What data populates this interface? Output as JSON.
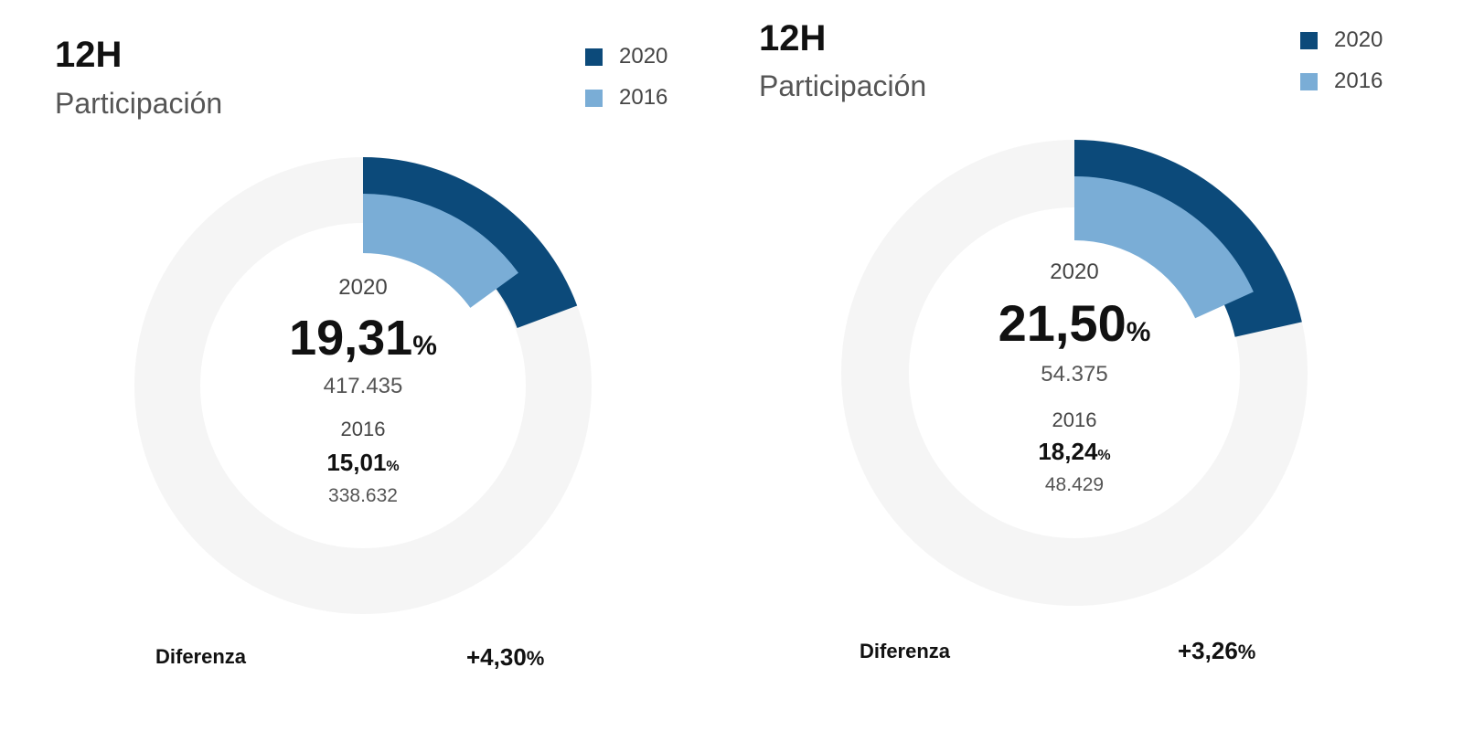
{
  "colors": {
    "series_2020": "#0c4a7a",
    "series_2016": "#7aadd6",
    "track": "#f5f5f5"
  },
  "chart_data": [
    {
      "type": "pie",
      "title": "12H",
      "subtitle": "Participación",
      "legend": [
        "2020",
        "2016"
      ],
      "series": [
        {
          "name": "2020",
          "percent": 19.31,
          "percent_label": "19,31",
          "votes": "417.435"
        },
        {
          "name": "2016",
          "percent": 15.01,
          "percent_label": "15,01",
          "votes": "338.632"
        }
      ],
      "unit": "%",
      "difference_label": "Diferenza",
      "difference_value": "+4,30"
    },
    {
      "type": "pie",
      "title": "12H",
      "subtitle": "Participación",
      "legend": [
        "2020",
        "2016"
      ],
      "series": [
        {
          "name": "2020",
          "percent": 21.5,
          "percent_label": "21,50",
          "votes": "54.375"
        },
        {
          "name": "2016",
          "percent": 18.24,
          "percent_label": "18,24",
          "votes": "48.429"
        }
      ],
      "unit": "%",
      "difference_label": "Diferenza",
      "difference_value": "+3,26"
    }
  ]
}
